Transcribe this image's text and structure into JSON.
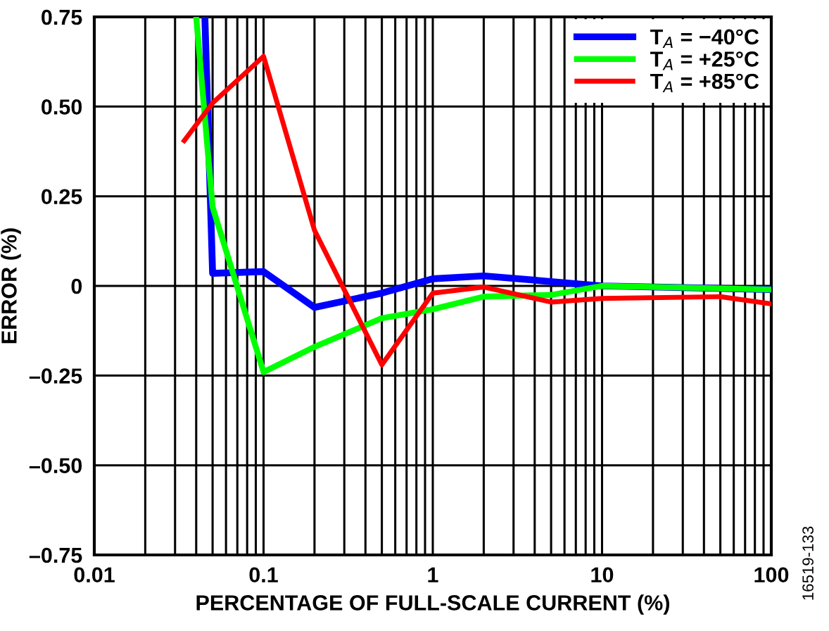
{
  "chart_data": {
    "type": "line",
    "xlabel": "PERCENTAGE OF FULL-SCALE CURRENT (%)",
    "ylabel": "ERROR (%)",
    "log": "x",
    "grid": true,
    "legend": "top right",
    "line_style": "solid",
    "marker": "none",
    "xlim": [
      0.01,
      100
    ],
    "ylim": [
      -0.75,
      0.75
    ],
    "xticks": [
      0.01,
      {
        "value": 0.02,
        "label": null
      },
      {
        "value": 0.03,
        "label": null
      },
      {
        "value": 0.04,
        "label": null
      },
      {
        "value": 0.05,
        "label": null
      },
      {
        "value": 0.06,
        "label": null
      },
      {
        "value": 0.07,
        "label": null
      },
      {
        "value": 0.08,
        "label": null
      },
      {
        "value": 0.09,
        "label": null
      },
      0.1,
      {
        "value": 0.2,
        "label": null
      },
      {
        "value": 0.3,
        "label": null
      },
      {
        "value": 0.4,
        "label": null
      },
      {
        "value": 0.5,
        "label": null
      },
      {
        "value": 0.6,
        "label": null
      },
      {
        "value": 0.7,
        "label": null
      },
      {
        "value": 0.8,
        "label": null
      },
      {
        "value": 0.9,
        "label": null
      },
      1,
      {
        "value": 2,
        "label": null
      },
      {
        "value": 3,
        "label": null
      },
      {
        "value": 4,
        "label": null
      },
      {
        "value": 5,
        "label": null
      },
      {
        "value": 6,
        "label": null
      },
      {
        "value": 7,
        "label": null
      },
      {
        "value": 8,
        "label": null
      },
      {
        "value": 9,
        "label": null
      },
      10,
      {
        "value": 20,
        "label": null
      },
      {
        "value": 30,
        "label": null
      },
      {
        "value": 40,
        "label": null
      },
      {
        "value": 50,
        "label": null
      },
      {
        "value": 60,
        "label": null
      },
      {
        "value": 70,
        "label": null
      },
      {
        "value": 80,
        "label": null
      },
      {
        "value": 90,
        "label": null
      },
      100
    ],
    "yticks": [
      {
        "value": -0.75,
        "label": "–0.75"
      },
      {
        "value": -0.5,
        "label": "–0.50"
      },
      {
        "value": -0.25,
        "label": "–0.25"
      },
      0,
      0.25,
      {
        "value": 0.5,
        "label": "0.50"
      },
      0.75
    ],
    "series": [
      {
        "name": "T$_{A}$ = −40°C",
        "color": "#0000ff",
        "x": [
          0.045,
          0.05,
          0.1,
          0.2,
          0.5,
          1,
          2,
          10,
          100
        ],
        "values": [
          0.75,
          0.035,
          0.04,
          -0.06,
          -0.02,
          0.02,
          0.028,
          0.0,
          -0.01
        ]
      },
      {
        "name": "T$_{A}$ = +25°C",
        "color": "#00ff00",
        "x": [
          0.04,
          0.05,
          0.1,
          0.2,
          0.5,
          1,
          2,
          5,
          10,
          100
        ],
        "values": [
          0.75,
          0.22,
          -0.24,
          -0.17,
          -0.09,
          -0.065,
          -0.03,
          -0.025,
          0.0,
          -0.01
        ]
      },
      {
        "name": "T$_{A}$ = +85°C",
        "color": "#ff0000",
        "x": [
          0.034,
          0.05,
          0.1,
          0.2,
          0.5,
          1,
          2,
          5,
          10,
          50,
          100
        ],
        "values": [
          0.405,
          0.51,
          0.64,
          0.155,
          -0.22,
          -0.02,
          -0.003,
          -0.045,
          -0.035,
          -0.03,
          -0.05
        ]
      }
    ],
    "annotations": [
      "16519-133"
    ]
  }
}
